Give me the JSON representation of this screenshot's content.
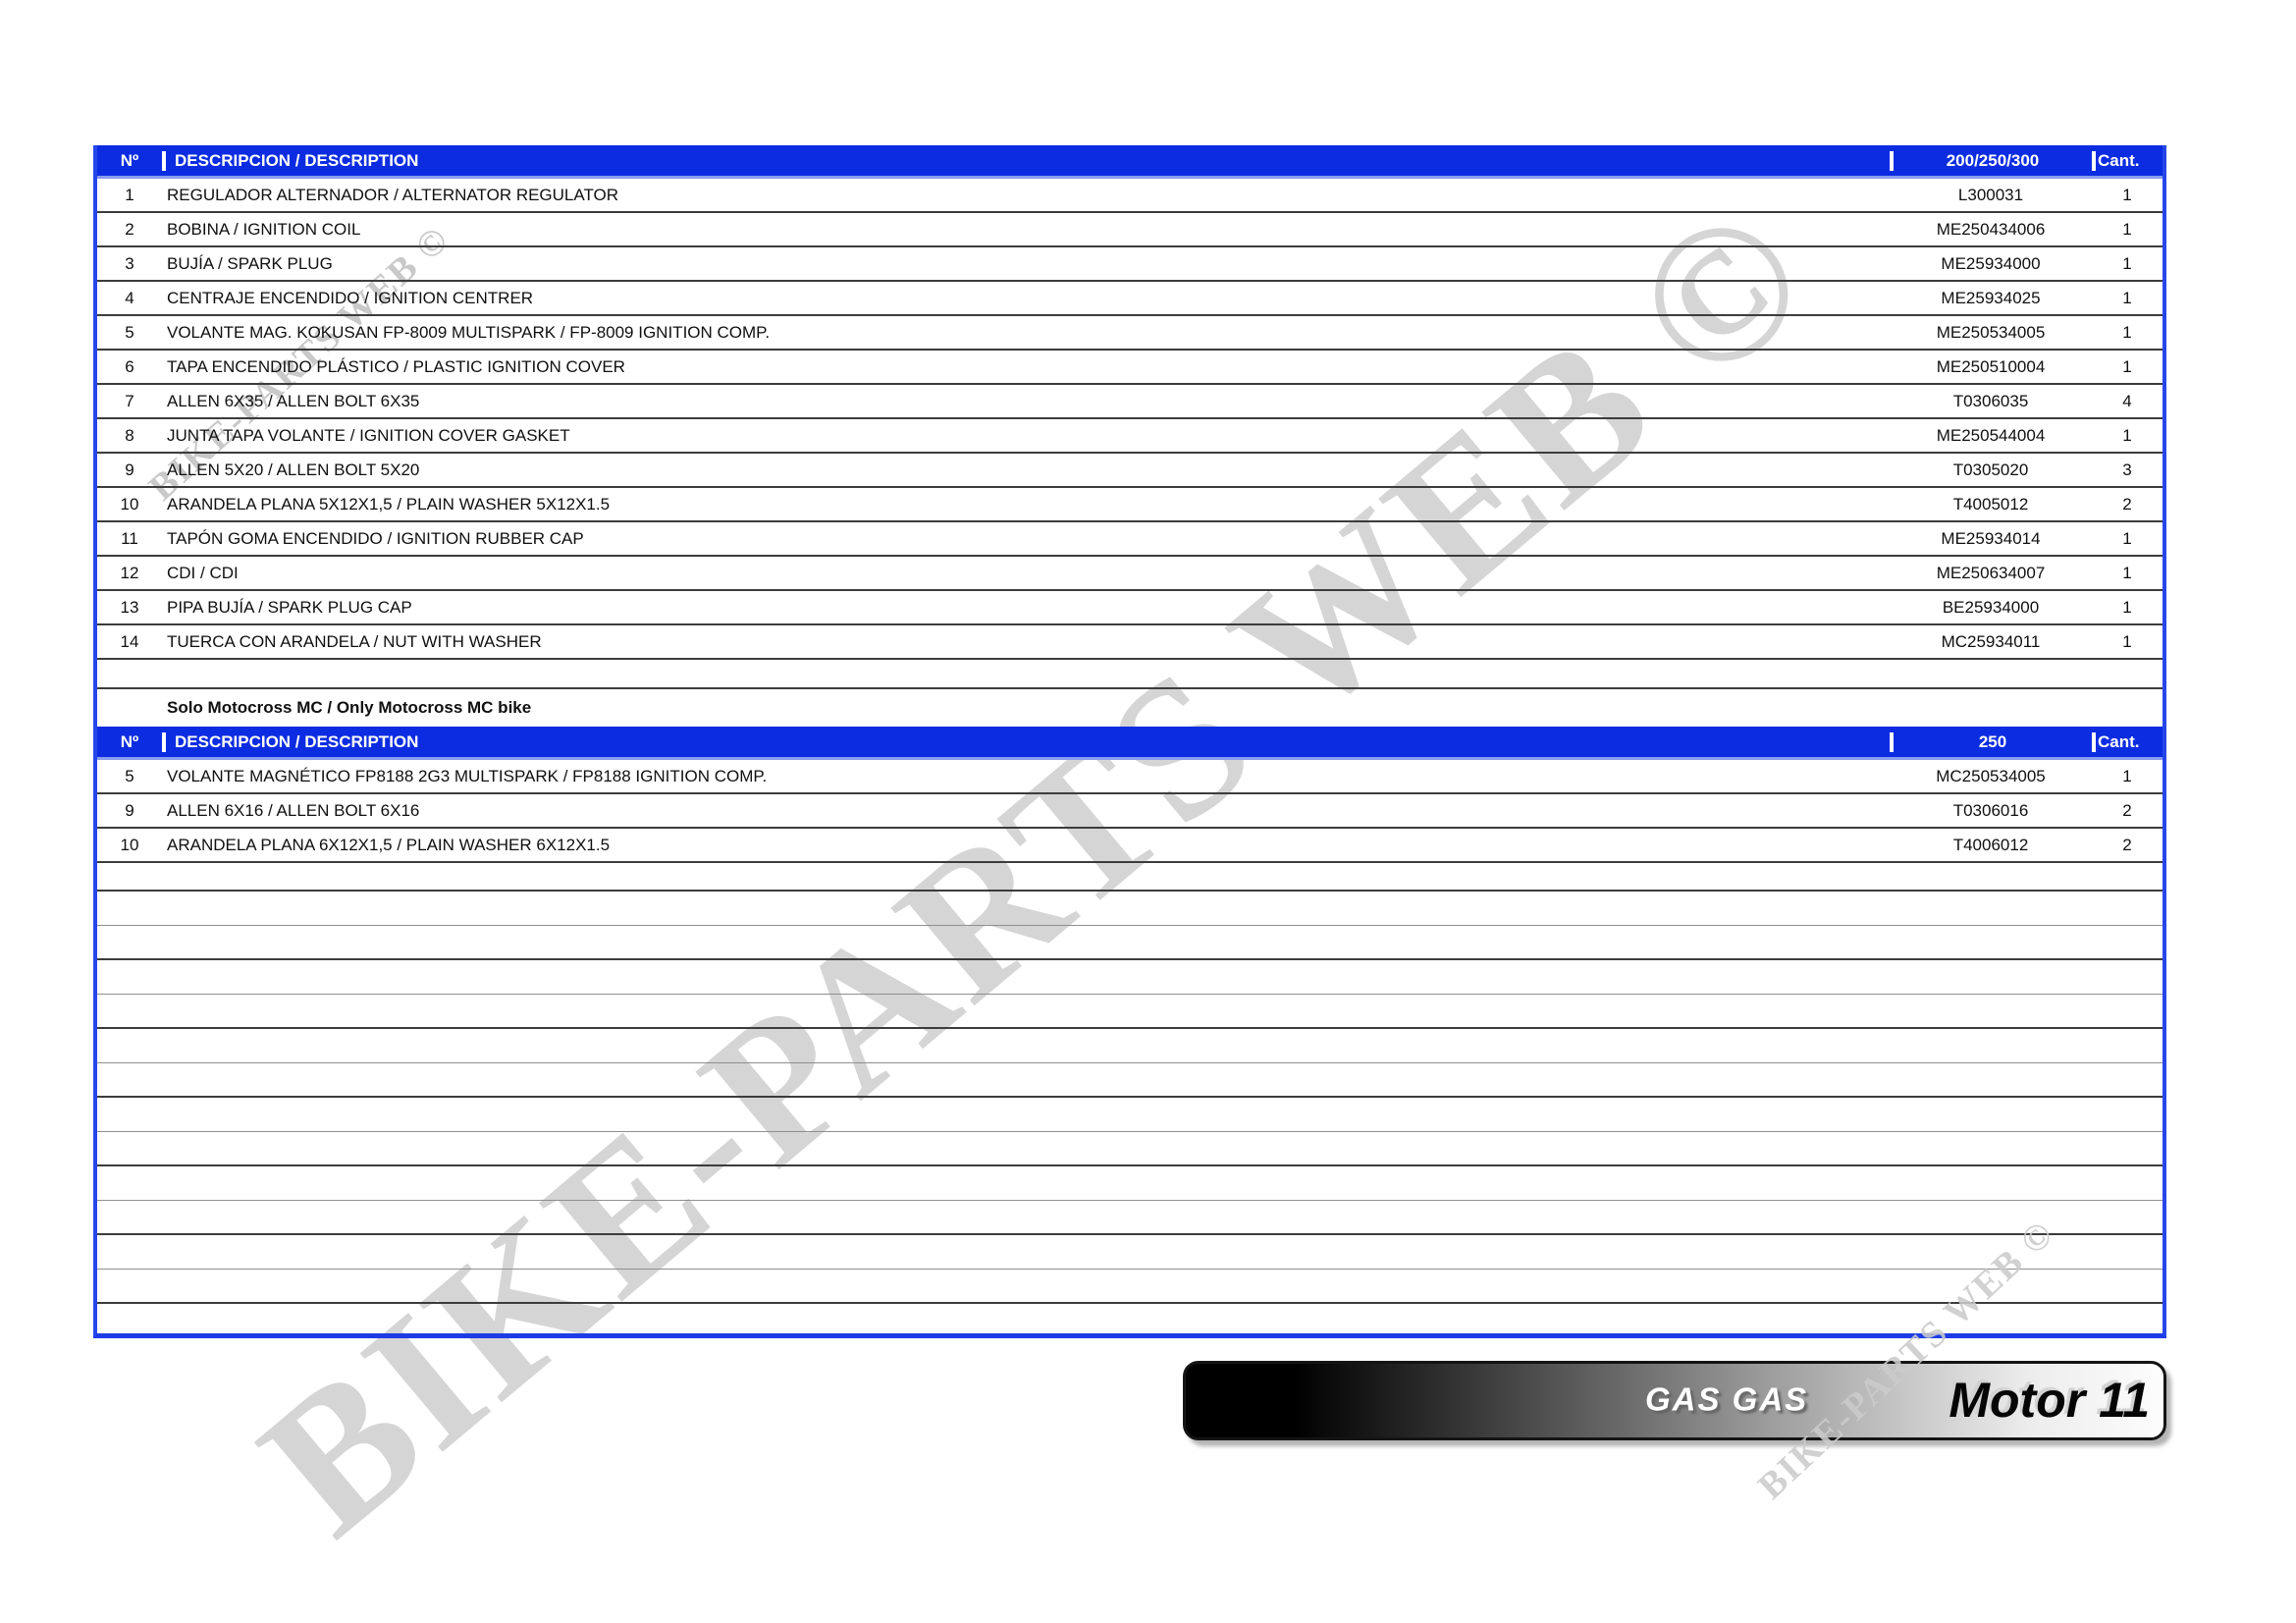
{
  "watermarks": {
    "main": "BIKE-PARTS WEB ©",
    "top_left": "BIKE-PARTS WEB ©",
    "bottom_right": "BIKE-PARTS WEB ©"
  },
  "table1": {
    "headers": {
      "no": "Nº",
      "desc": "DESCRIPCION / DESCRIPTION",
      "ref": "200/250/300",
      "qty": "Cant."
    },
    "rows": [
      {
        "no": "1",
        "desc": "REGULADOR ALTERNADOR / ALTERNATOR REGULATOR",
        "ref": "L300031",
        "qty": "1"
      },
      {
        "no": "2",
        "desc": "BOBINA / IGNITION COIL",
        "ref": "ME250434006",
        "qty": "1"
      },
      {
        "no": "3",
        "desc": "BUJÍA / SPARK PLUG",
        "ref": "ME25934000",
        "qty": "1"
      },
      {
        "no": "4",
        "desc": "CENTRAJE ENCENDIDO / IGNITION CENTRER",
        "ref": "ME25934025",
        "qty": "1"
      },
      {
        "no": "5",
        "desc": "VOLANTE MAG. KOKUSAN FP-8009 MULTISPARK / FP-8009 IGNITION COMP.",
        "ref": "ME250534005",
        "qty": "1"
      },
      {
        "no": "6",
        "desc": "TAPA ENCENDIDO PLÁSTICO / PLASTIC IGNITION COVER",
        "ref": "ME250510004",
        "qty": "1"
      },
      {
        "no": "7",
        "desc": "ALLEN 6X35 / ALLEN BOLT 6X35",
        "ref": "T0306035",
        "qty": "4"
      },
      {
        "no": "8",
        "desc": "JUNTA TAPA VOLANTE / IGNITION COVER GASKET",
        "ref": "ME250544004",
        "qty": "1"
      },
      {
        "no": "9",
        "desc": "ALLEN 5X20 / ALLEN BOLT 5X20",
        "ref": "T0305020",
        "qty": "3"
      },
      {
        "no": "10",
        "desc": "ARANDELA PLANA 5X12X1,5 / PLAIN WASHER 5X12X1.5",
        "ref": "T4005012",
        "qty": "2"
      },
      {
        "no": "11",
        "desc": "TAPÓN GOMA ENCENDIDO / IGNITION RUBBER CAP",
        "ref": "ME25934014",
        "qty": "1"
      },
      {
        "no": "12",
        "desc": "CDI / CDI",
        "ref": "ME250634007",
        "qty": "1"
      },
      {
        "no": "13",
        "desc": "PIPA BUJÍA / SPARK PLUG CAP",
        "ref": "BE25934000",
        "qty": "1"
      },
      {
        "no": "14",
        "desc": "TUERCA CON ARANDELA / NUT WITH WASHER",
        "ref": "MC25934011",
        "qty": "1"
      }
    ]
  },
  "section_note": "Solo Motocross MC / Only Motocross MC bike",
  "table2": {
    "headers": {
      "no": "Nº",
      "desc": "DESCRIPCION / DESCRIPTION",
      "ref": "250",
      "qty": "Cant."
    },
    "rows": [
      {
        "no": "5",
        "desc": "VOLANTE MAGNÉTICO FP8188 2G3 MULTISPARK / FP8188 IGNITION COMP.",
        "ref": "MC250534005",
        "qty": "1"
      },
      {
        "no": "9",
        "desc": "ALLEN 6X16 / ALLEN BOLT 6X16",
        "ref": "T0306016",
        "qty": "2"
      },
      {
        "no": "10",
        "desc": "ARANDELA PLANA 6X12X1,5 / PLAIN WASHER 6X12X1.5",
        "ref": "T4006012",
        "qty": "2"
      }
    ]
  },
  "empty_rows": 14,
  "footer": {
    "brand": "GAS GAS",
    "page_label": "Motor 11"
  },
  "colors": {
    "header_blue": "#0c2ce2",
    "table_border_blue": "#2547ea",
    "row_line": "#3c3c3c",
    "watermark_gray": "#d5d5d5",
    "banner_black": "#000000"
  }
}
